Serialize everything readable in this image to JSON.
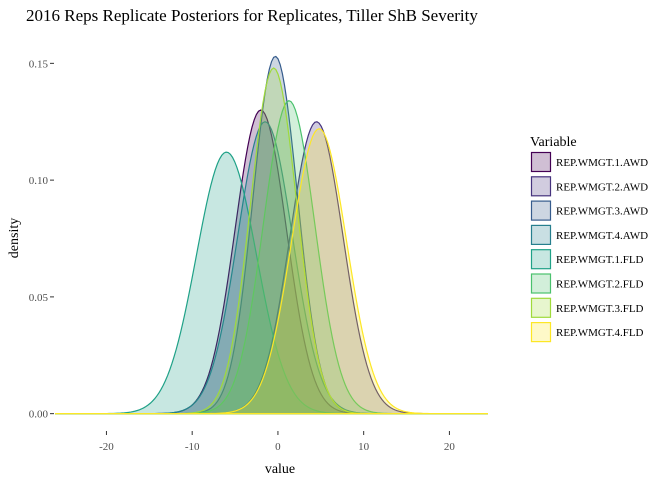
{
  "chart_data": {
    "type": "area",
    "title": "2016 Reps Replicate Posteriors for Replicates, Tiller ShB Severity",
    "xlabel": "value",
    "ylabel": "density",
    "xlim": [
      -26,
      24.5
    ],
    "ylim": [
      -0.007,
      0.16
    ],
    "x_ticks": [
      -20,
      -10,
      0,
      10,
      20
    ],
    "y_ticks": [
      0.0,
      0.05,
      0.1,
      0.15
    ],
    "x_tick_labels": [
      "-20",
      "-10",
      "0",
      "10",
      "20"
    ],
    "y_tick_labels": [
      "0.00",
      "0.05",
      "0.10",
      "0.15"
    ],
    "grid": false,
    "legend": {
      "title": "Variable",
      "position": "right"
    },
    "series": [
      {
        "name": "REP.WMGT.1.AWD",
        "color": "#440154",
        "peak_x": -2.0,
        "peak_density": 0.13,
        "sd": 3.0
      },
      {
        "name": "REP.WMGT.2.AWD",
        "color": "#46337E",
        "peak_x": 4.5,
        "peak_density": 0.125,
        "sd": 3.1
      },
      {
        "name": "REP.WMGT.3.AWD",
        "color": "#365C8D",
        "peak_x": -0.3,
        "peak_density": 0.153,
        "sd": 2.6
      },
      {
        "name": "REP.WMGT.4.AWD",
        "color": "#277F8E",
        "peak_x": -1.5,
        "peak_density": 0.125,
        "sd": 3.2
      },
      {
        "name": "REP.WMGT.1.FLD",
        "color": "#1FA187",
        "peak_x": -6.0,
        "peak_density": 0.112,
        "sd": 3.5
      },
      {
        "name": "REP.WMGT.2.FLD",
        "color": "#4AC16D",
        "peak_x": 1.3,
        "peak_density": 0.134,
        "sd": 3.0
      },
      {
        "name": "REP.WMGT.3.FLD",
        "color": "#9FDA3A",
        "peak_x": -0.5,
        "peak_density": 0.148,
        "sd": 2.7
      },
      {
        "name": "REP.WMGT.4.FLD",
        "color": "#FDE725",
        "peak_x": 4.8,
        "peak_density": 0.122,
        "sd": 3.2
      }
    ]
  }
}
